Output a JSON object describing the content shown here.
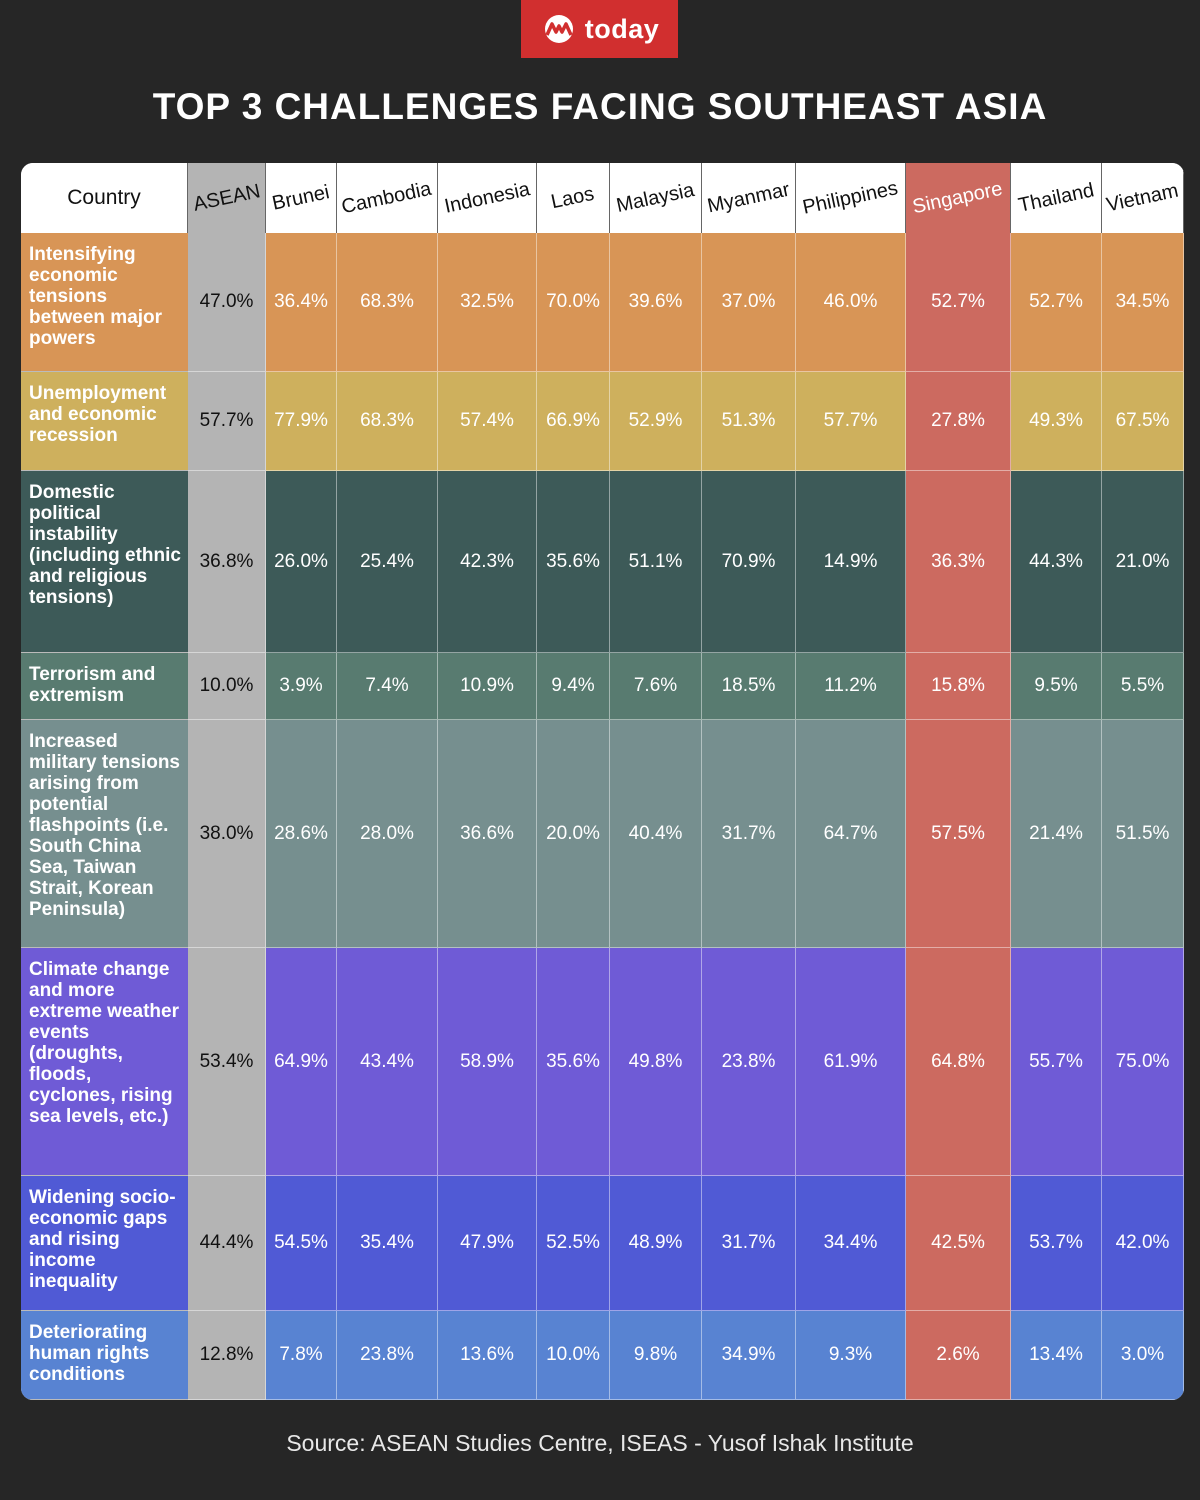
{
  "brand": {
    "name": "today",
    "color": "#d12f2f"
  },
  "title": "TOP 3 CHALLENGES FACING SOUTHEAST ASIA",
  "source": "Source: ASEAN Studies Centre, ISEAS - Yusof Ishak Institute",
  "chart_data": {
    "type": "table",
    "title": "TOP 3 CHALLENGES FACING SOUTHEAST ASIA",
    "corner_label": "Country",
    "columns": [
      "ASEAN",
      "Brunei",
      "Cambodia",
      "Indonesia",
      "Laos",
      "Malaysia",
      "Myanmar",
      "Philippines",
      "Singapore",
      "Thailand",
      "Vietnam"
    ],
    "highlight_column": "Singapore",
    "highlight_color": "#cc6a60",
    "asean_color": "#b4b4b4",
    "rows": [
      {
        "label": "Intensifying economic tensions between major powers",
        "color": "#d89556",
        "values": [
          "47.0%",
          "36.4%",
          "68.3%",
          "32.5%",
          "70.0%",
          "39.6%",
          "37.0%",
          "46.0%",
          "52.7%",
          "52.7%",
          "34.5%"
        ]
      },
      {
        "label": "Unemployment and economic recession",
        "color": "#ceb05d",
        "values": [
          "57.7%",
          "77.9%",
          "68.3%",
          "57.4%",
          "66.9%",
          "52.9%",
          "51.3%",
          "57.7%",
          "27.8%",
          "49.3%",
          "67.5%"
        ]
      },
      {
        "label": "Domestic political instability (including ethnic and religious tensions)",
        "color": "#3d5a58",
        "values": [
          "36.8%",
          "26.0%",
          "25.4%",
          "42.3%",
          "35.6%",
          "51.1%",
          "70.9%",
          "14.9%",
          "36.3%",
          "44.3%",
          "21.0%"
        ]
      },
      {
        "label": "Terrorism and extremism",
        "color": "#587b70",
        "values": [
          "10.0%",
          "3.9%",
          "7.4%",
          "10.9%",
          "9.4%",
          "7.6%",
          "18.5%",
          "11.2%",
          "15.8%",
          "9.5%",
          "5.5%"
        ]
      },
      {
        "label": "Increased military tensions arising from potential flashpoints (i.e. South China Sea, Taiwan Strait, Korean Peninsula)",
        "color": "#768f8f",
        "values": [
          "38.0%",
          "28.6%",
          "28.0%",
          "36.6%",
          "20.0%",
          "40.4%",
          "31.7%",
          "64.7%",
          "57.5%",
          "21.4%",
          "51.5%"
        ]
      },
      {
        "label": "Climate change and more extreme weather events (droughts, floods, cyclones, rising sea levels, etc.)",
        "color": "#6f5bd6",
        "values": [
          "53.4%",
          "64.9%",
          "43.4%",
          "58.9%",
          "35.6%",
          "49.8%",
          "23.8%",
          "61.9%",
          "64.8%",
          "55.7%",
          "75.0%"
        ]
      },
      {
        "label": "Widening socio-economic gaps and rising income inequality",
        "color": "#505ad5",
        "values": [
          "44.4%",
          "54.5%",
          "35.4%",
          "47.9%",
          "52.5%",
          "48.9%",
          "31.7%",
          "34.4%",
          "42.5%",
          "53.7%",
          "42.0%"
        ]
      },
      {
        "label": "Deteriorating human rights conditions",
        "color": "#5883d2",
        "values": [
          "12.8%",
          "7.8%",
          "23.8%",
          "13.6%",
          "10.0%",
          "9.8%",
          "34.9%",
          "9.3%",
          "2.6%",
          "13.4%",
          "3.0%"
        ]
      }
    ]
  }
}
